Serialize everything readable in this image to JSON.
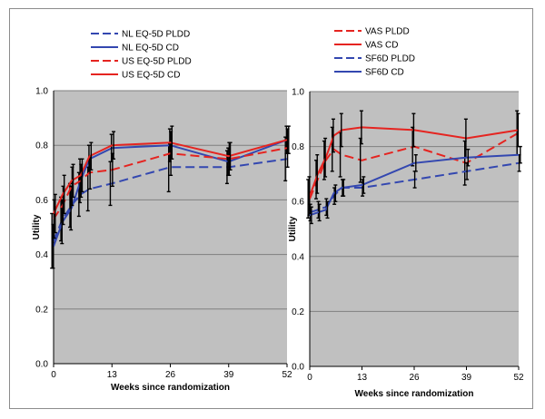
{
  "chart_data": [
    {
      "type": "line",
      "xlabel": "Weeks since randomization",
      "ylabel": "Utility",
      "xlim": [
        0,
        52
      ],
      "ylim": [
        0.0,
        1.0
      ],
      "x_ticks": [
        "0",
        "13",
        "26",
        "39",
        "52"
      ],
      "y_ticks": [
        "0.0",
        "0.2",
        "0.4",
        "0.6",
        "0.8",
        "1.0"
      ],
      "grid": "horizontal",
      "legend": "top",
      "series": [
        {
          "name": "NL EQ-5D PLDD",
          "color": "#3347b0",
          "dash": true,
          "x": [
            0,
            2,
            4,
            6,
            8,
            13,
            26,
            39,
            52
          ],
          "y": [
            0.45,
            0.53,
            0.58,
            0.62,
            0.64,
            0.66,
            0.72,
            0.72,
            0.75
          ],
          "err": [
            0.1,
            0.08,
            0.08,
            0.08,
            0.08,
            0.08,
            0.09,
            0.06,
            0.08
          ]
        },
        {
          "name": "NL EQ-5D CD",
          "color": "#3347b0",
          "dash": false,
          "x": [
            0,
            2,
            4,
            6,
            8,
            13,
            26,
            39,
            52
          ],
          "y": [
            0.43,
            0.52,
            0.57,
            0.67,
            0.75,
            0.79,
            0.8,
            0.74,
            0.82
          ],
          "err": [
            0.08,
            0.08,
            0.08,
            0.08,
            0.05,
            0.05,
            0.06,
            0.05,
            0.05
          ]
        },
        {
          "name": "US EQ-5D PLDD",
          "color": "#e52420",
          "dash": true,
          "x": [
            0,
            2,
            4,
            6,
            8,
            13,
            26,
            39,
            52
          ],
          "y": [
            0.53,
            0.58,
            0.65,
            0.67,
            0.7,
            0.71,
            0.77,
            0.75,
            0.79
          ],
          "err": [
            0.07,
            0.07,
            0.07,
            0.06,
            0.06,
            0.06,
            0.08,
            0.06,
            0.07
          ]
        },
        {
          "name": "US EQ-5D CD",
          "color": "#e52420",
          "dash": false,
          "x": [
            0,
            2,
            4,
            6,
            8,
            13,
            26,
            39,
            52
          ],
          "y": [
            0.55,
            0.62,
            0.67,
            0.69,
            0.76,
            0.8,
            0.81,
            0.76,
            0.82
          ],
          "err": [
            0.07,
            0.07,
            0.06,
            0.06,
            0.05,
            0.05,
            0.06,
            0.05,
            0.05
          ]
        }
      ]
    },
    {
      "type": "line",
      "xlabel": "Weeks since randomization",
      "ylabel": "Utility",
      "xlim": [
        0,
        52
      ],
      "ylim": [
        0.0,
        1.0
      ],
      "x_ticks": [
        "0",
        "13",
        "26",
        "39",
        "52"
      ],
      "y_ticks": [
        "0.0",
        "0.2",
        "0.4",
        "0.6",
        "0.8",
        "1.0"
      ],
      "grid": "horizontal",
      "legend": "top",
      "series": [
        {
          "name": "VAS PLDD",
          "color": "#e52420",
          "dash": true,
          "x": [
            0,
            2,
            4,
            6,
            8,
            13,
            26,
            39,
            52
          ],
          "y": [
            0.61,
            0.68,
            0.75,
            0.79,
            0.77,
            0.75,
            0.8,
            0.74,
            0.85
          ],
          "err": [
            0.07,
            0.07,
            0.07,
            0.08,
            0.08,
            0.08,
            0.07,
            0.08,
            0.08
          ]
        },
        {
          "name": "VAS CD",
          "color": "#e52420",
          "dash": false,
          "x": [
            0,
            2,
            4,
            6,
            8,
            13,
            26,
            39,
            52
          ],
          "y": [
            0.62,
            0.7,
            0.76,
            0.84,
            0.86,
            0.87,
            0.86,
            0.83,
            0.86
          ],
          "err": [
            0.07,
            0.07,
            0.07,
            0.06,
            0.06,
            0.06,
            0.06,
            0.07,
            0.06
          ]
        },
        {
          "name": "SF6D PLDD",
          "color": "#3347b0",
          "dash": true,
          "x": [
            0,
            2,
            4,
            6,
            8,
            13,
            26,
            39,
            52
          ],
          "y": [
            0.56,
            0.57,
            0.58,
            0.62,
            0.65,
            0.65,
            0.68,
            0.71,
            0.74
          ],
          "err": [
            0.03,
            0.03,
            0.03,
            0.03,
            0.03,
            0.03,
            0.03,
            0.03,
            0.03
          ]
        },
        {
          "name": "SF6D CD",
          "color": "#3347b0",
          "dash": false,
          "x": [
            0,
            2,
            4,
            6,
            8,
            13,
            26,
            39,
            52
          ],
          "y": [
            0.55,
            0.56,
            0.57,
            0.63,
            0.65,
            0.66,
            0.74,
            0.76,
            0.77
          ],
          "err": [
            0.03,
            0.03,
            0.03,
            0.03,
            0.03,
            0.03,
            0.03,
            0.03,
            0.03
          ]
        }
      ]
    }
  ],
  "colors": {
    "plot_bg": "#c0c0c0",
    "grid": "#7f7f7f",
    "frame": "#8c8c8c",
    "error_bar": "#000000"
  }
}
